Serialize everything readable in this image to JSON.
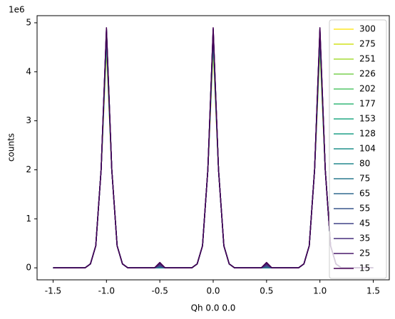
{
  "chart_data": {
    "type": "line",
    "xlabel": "Qh 0.0 0.0",
    "ylabel": "counts",
    "y_offset_label": "1e6",
    "x": [
      -1.5,
      -1.45,
      -1.4,
      -1.35,
      -1.3,
      -1.25,
      -1.2,
      -1.15,
      -1.1,
      -1.05,
      -1,
      -0.95,
      -0.9,
      -0.85,
      -0.8,
      -0.75,
      -0.7,
      -0.65,
      -0.6,
      -0.55,
      -0.5,
      -0.45,
      -0.4,
      -0.35,
      -0.3,
      -0.25,
      -0.2,
      -0.15,
      -0.1,
      -0.05,
      0,
      0.05,
      0.1,
      0.15,
      0.2,
      0.25,
      0.3,
      0.35,
      0.4,
      0.45,
      0.5,
      0.55,
      0.6,
      0.65,
      0.7,
      0.75,
      0.8,
      0.85,
      0.9,
      0.95,
      1,
      1.05,
      1.1,
      1.15,
      1.2,
      1.25,
      1.3,
      1.35,
      1.4,
      1.45,
      1.5
    ],
    "series": [
      {
        "name": "300",
        "color": "#fde725",
        "values": [
          0,
          0,
          0,
          0,
          0,
          0,
          0,
          0.08,
          0.45,
          2,
          4.45,
          2,
          0.45,
          0.08,
          0,
          0,
          0,
          0,
          0,
          0,
          0,
          0,
          0,
          0,
          0,
          0,
          0,
          0.08,
          0.45,
          2,
          4.45,
          2,
          0.45,
          0.08,
          0,
          0,
          0,
          0,
          0,
          0,
          0,
          0,
          0,
          0,
          0,
          0,
          0,
          0.08,
          0.45,
          2,
          4.45,
          2,
          0.45,
          0.08,
          0,
          0,
          0,
          0,
          0,
          0,
          0
        ]
      },
      {
        "name": "275",
        "color": "#d2e21b",
        "values": [
          0,
          0,
          0,
          0,
          0,
          0,
          0,
          0.08,
          0.45,
          2,
          4.5,
          2,
          0.45,
          0.08,
          0,
          0,
          0,
          0,
          0,
          0,
          0,
          0,
          0,
          0,
          0,
          0,
          0,
          0.08,
          0.45,
          2,
          4.5,
          2,
          0.45,
          0.08,
          0,
          0,
          0,
          0,
          0,
          0,
          0,
          0,
          0,
          0,
          0,
          0,
          0,
          0.08,
          0.45,
          2,
          4.5,
          2,
          0.45,
          0.08,
          0,
          0,
          0,
          0,
          0,
          0,
          0
        ]
      },
      {
        "name": "251",
        "color": "#a5db36",
        "values": [
          0,
          0,
          0,
          0,
          0,
          0,
          0,
          0.08,
          0.45,
          2,
          4.55,
          2,
          0.45,
          0.08,
          0,
          0,
          0,
          0,
          0,
          0,
          0,
          0,
          0,
          0,
          0,
          0,
          0,
          0.08,
          0.45,
          2,
          4.55,
          2,
          0.45,
          0.08,
          0,
          0,
          0,
          0,
          0,
          0,
          0,
          0,
          0,
          0,
          0,
          0,
          0,
          0.08,
          0.45,
          2,
          4.55,
          2,
          0.45,
          0.08,
          0,
          0,
          0,
          0,
          0,
          0,
          0
        ]
      },
      {
        "name": "226",
        "color": "#7ad151",
        "values": [
          0,
          0,
          0,
          0,
          0,
          0,
          0,
          0.08,
          0.45,
          2,
          4.6,
          2,
          0.45,
          0.08,
          0,
          0,
          0,
          0,
          0,
          0,
          0,
          0,
          0,
          0,
          0,
          0,
          0,
          0.08,
          0.45,
          2,
          4.6,
          2,
          0.45,
          0.08,
          0,
          0,
          0,
          0,
          0,
          0,
          0,
          0,
          0,
          0,
          0,
          0,
          0,
          0.08,
          0.45,
          2,
          4.6,
          2,
          0.45,
          0.08,
          0,
          0,
          0,
          0,
          0,
          0,
          0
        ]
      },
      {
        "name": "202",
        "color": "#54c568",
        "values": [
          0,
          0,
          0,
          0,
          0,
          0,
          0,
          0.08,
          0.45,
          2,
          4.62,
          2,
          0.45,
          0.08,
          0,
          0,
          0,
          0,
          0,
          0,
          0,
          0,
          0,
          0,
          0,
          0,
          0,
          0.08,
          0.45,
          2,
          4.62,
          2,
          0.45,
          0.08,
          0,
          0,
          0,
          0,
          0,
          0,
          0,
          0,
          0,
          0,
          0,
          0,
          0,
          0.08,
          0.45,
          2,
          4.62,
          2,
          0.45,
          0.08,
          0,
          0,
          0,
          0,
          0,
          0,
          0
        ]
      },
      {
        "name": "177",
        "color": "#35b779",
        "values": [
          0,
          0,
          0,
          0,
          0,
          0,
          0,
          0.08,
          0.45,
          2,
          4.65,
          2,
          0.45,
          0.08,
          0,
          0,
          0,
          0,
          0,
          0,
          0,
          0,
          0,
          0,
          0,
          0,
          0,
          0.08,
          0.45,
          2,
          4.65,
          2,
          0.45,
          0.08,
          0,
          0,
          0,
          0,
          0,
          0,
          0,
          0,
          0,
          0,
          0,
          0,
          0,
          0.08,
          0.45,
          2,
          4.65,
          2,
          0.45,
          0.08,
          0,
          0,
          0,
          0,
          0,
          0,
          0
        ]
      },
      {
        "name": "153",
        "color": "#22a884",
        "values": [
          0,
          0,
          0,
          0,
          0,
          0,
          0,
          0.08,
          0.45,
          2,
          4.68,
          2,
          0.45,
          0.08,
          0,
          0,
          0,
          0,
          0,
          0,
          0,
          0,
          0,
          0,
          0,
          0,
          0,
          0.08,
          0.45,
          2,
          4.68,
          2,
          0.45,
          0.08,
          0,
          0,
          0,
          0,
          0,
          0,
          0,
          0,
          0,
          0,
          0,
          0,
          0,
          0.08,
          0.45,
          2,
          4.68,
          2,
          0.45,
          0.08,
          0,
          0,
          0,
          0,
          0,
          0,
          0
        ]
      },
      {
        "name": "128",
        "color": "#1fa088",
        "values": [
          0,
          0,
          0,
          0,
          0,
          0,
          0,
          0.08,
          0.45,
          2,
          4.7,
          2,
          0.45,
          0.08,
          0,
          0,
          0,
          0,
          0,
          0,
          0,
          0,
          0,
          0,
          0,
          0,
          0,
          0.08,
          0.45,
          2,
          4.7,
          2,
          0.45,
          0.08,
          0,
          0,
          0,
          0,
          0,
          0,
          0,
          0,
          0,
          0,
          0,
          0,
          0,
          0.08,
          0.45,
          2,
          4.7,
          2,
          0.45,
          0.08,
          0,
          0,
          0,
          0,
          0,
          0,
          0
        ]
      },
      {
        "name": "104",
        "color": "#21918c",
        "values": [
          0,
          0,
          0,
          0,
          0,
          0,
          0,
          0.08,
          0.45,
          2,
          4.72,
          2,
          0.45,
          0.08,
          0,
          0,
          0,
          0,
          0,
          0,
          0,
          0,
          0,
          0,
          0,
          0,
          0,
          0.08,
          0.45,
          2,
          4.72,
          2,
          0.45,
          0.08,
          0,
          0,
          0,
          0,
          0,
          0,
          0,
          0,
          0,
          0,
          0,
          0,
          0,
          0.08,
          0.45,
          2,
          4.72,
          2,
          0.45,
          0.08,
          0,
          0,
          0,
          0,
          0,
          0,
          0
        ]
      },
      {
        "name": "80",
        "color": "#23888e",
        "values": [
          0,
          0,
          0,
          0,
          0,
          0,
          0,
          0.08,
          0.45,
          2,
          4.75,
          2,
          0.45,
          0.08,
          0,
          0,
          0,
          0,
          0,
          0,
          0,
          0,
          0,
          0,
          0,
          0,
          0,
          0.08,
          0.45,
          2,
          4.75,
          2,
          0.45,
          0.08,
          0,
          0,
          0,
          0,
          0,
          0,
          0,
          0,
          0,
          0,
          0,
          0,
          0,
          0.08,
          0.45,
          2,
          4.75,
          2,
          0.45,
          0.08,
          0,
          0,
          0,
          0,
          0,
          0,
          0
        ]
      },
      {
        "name": "75",
        "color": "#2a788e",
        "values": [
          0,
          0,
          0,
          0,
          0,
          0,
          0,
          0.08,
          0.45,
          2,
          4.78,
          2,
          0.45,
          0.08,
          0,
          0,
          0,
          0,
          0,
          0,
          0.005,
          0,
          0,
          0,
          0,
          0,
          0,
          0.08,
          0.45,
          2,
          4.78,
          2,
          0.45,
          0.08,
          0,
          0,
          0,
          0,
          0,
          0,
          0.005,
          0,
          0,
          0,
          0,
          0,
          0,
          0.08,
          0.45,
          2,
          4.78,
          2,
          0.45,
          0.08,
          0,
          0,
          0,
          0,
          0,
          0,
          0
        ]
      },
      {
        "name": "65",
        "color": "#31688e",
        "values": [
          0,
          0,
          0,
          0,
          0,
          0,
          0,
          0.08,
          0.45,
          2,
          4.8,
          2,
          0.45,
          0.08,
          0,
          0,
          0,
          0,
          0,
          0,
          0.015,
          0,
          0,
          0,
          0,
          0,
          0,
          0.08,
          0.45,
          2,
          4.8,
          2,
          0.45,
          0.08,
          0,
          0,
          0,
          0,
          0,
          0,
          0.015,
          0,
          0,
          0,
          0,
          0,
          0,
          0.08,
          0.45,
          2,
          4.8,
          2,
          0.45,
          0.08,
          0,
          0,
          0,
          0,
          0,
          0,
          0
        ]
      },
      {
        "name": "55",
        "color": "#39568c",
        "values": [
          0,
          0,
          0,
          0,
          0,
          0,
          0,
          0.08,
          0.45,
          2,
          4.83,
          2,
          0.45,
          0.08,
          0,
          0,
          0,
          0,
          0,
          0,
          0.03,
          0,
          0,
          0,
          0,
          0,
          0,
          0.08,
          0.45,
          2,
          4.83,
          2,
          0.45,
          0.08,
          0,
          0,
          0,
          0,
          0,
          0,
          0.03,
          0,
          0,
          0,
          0,
          0,
          0,
          0.08,
          0.45,
          2,
          4.83,
          2,
          0.45,
          0.08,
          0,
          0,
          0,
          0,
          0,
          0,
          0
        ]
      },
      {
        "name": "45",
        "color": "#414487",
        "values": [
          0,
          0,
          0,
          0,
          0,
          0,
          0,
          0.08,
          0.45,
          2,
          4.85,
          2,
          0.45,
          0.08,
          0,
          0,
          0,
          0,
          0,
          0,
          0.05,
          0,
          0,
          0,
          0,
          0,
          0,
          0.08,
          0.45,
          2,
          4.85,
          2,
          0.45,
          0.08,
          0,
          0,
          0,
          0,
          0,
          0,
          0.05,
          0,
          0,
          0,
          0,
          0,
          0,
          0.08,
          0.45,
          2,
          4.85,
          2,
          0.45,
          0.08,
          0,
          0,
          0,
          0,
          0,
          0,
          0
        ]
      },
      {
        "name": "35",
        "color": "#472f7d",
        "values": [
          0,
          0,
          0,
          0,
          0,
          0,
          0,
          0.08,
          0.45,
          2,
          4.87,
          2,
          0.45,
          0.08,
          0,
          0,
          0,
          0,
          0,
          0,
          0.07,
          0,
          0,
          0,
          0,
          0,
          0,
          0.08,
          0.45,
          2,
          4.87,
          2,
          0.45,
          0.08,
          0,
          0,
          0,
          0,
          0,
          0,
          0.07,
          0,
          0,
          0,
          0,
          0,
          0,
          0.08,
          0.45,
          2,
          4.87,
          2,
          0.45,
          0.08,
          0,
          0,
          0,
          0,
          0,
          0,
          0
        ]
      },
      {
        "name": "25",
        "color": "#481a6c",
        "values": [
          0,
          0,
          0,
          0,
          0,
          0,
          0,
          0.08,
          0.45,
          2,
          4.88,
          2,
          0.45,
          0.08,
          0,
          0,
          0,
          0,
          0,
          0,
          0.09,
          0,
          0,
          0,
          0,
          0,
          0,
          0.08,
          0.45,
          2,
          4.88,
          2,
          0.45,
          0.08,
          0,
          0,
          0,
          0,
          0,
          0,
          0.09,
          0,
          0,
          0,
          0,
          0,
          0,
          0.08,
          0.45,
          2,
          4.88,
          2,
          0.45,
          0.08,
          0,
          0,
          0,
          0,
          0,
          0,
          0
        ]
      },
      {
        "name": "15",
        "color": "#440154",
        "values": [
          0,
          0,
          0,
          0,
          0,
          0,
          0,
          0.08,
          0.45,
          2,
          4.9,
          2,
          0.45,
          0.08,
          0,
          0,
          0,
          0,
          0,
          0,
          0.11,
          0,
          0,
          0,
          0,
          0,
          0,
          0.08,
          0.45,
          2,
          4.9,
          2,
          0.45,
          0.08,
          0,
          0,
          0,
          0,
          0,
          0,
          0.11,
          0,
          0,
          0,
          0,
          0,
          0,
          0.08,
          0.45,
          2,
          4.9,
          2,
          0.45,
          0.08,
          0,
          0,
          0,
          0,
          0,
          0,
          0
        ]
      }
    ],
    "xlim": [
      -1.65,
      1.65
    ],
    "xticks": [
      -1.5,
      -1.0,
      -0.5,
      0.0,
      0.5,
      1.0,
      1.5
    ],
    "ylim": [
      -0.245,
      5.145
    ],
    "yticks": [
      0,
      1,
      2,
      3,
      4,
      5
    ],
    "legend": "upper right"
  }
}
